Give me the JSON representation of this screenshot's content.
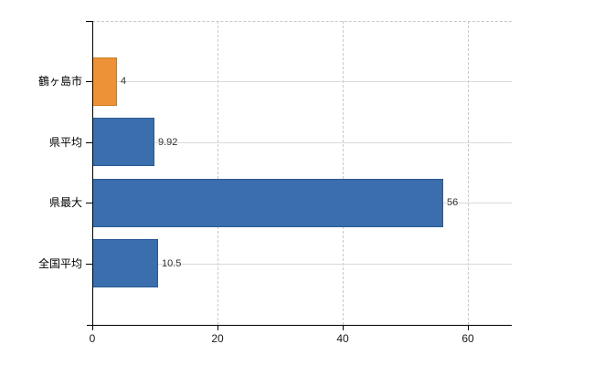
{
  "chart": {
    "background_color": "#ffffff",
    "axis_color": "#000000",
    "solid_gridline_color": "#d9d9d9",
    "dashed_gridline_color": "#c9c9c9",
    "value_label_color": "#333333",
    "tick_label_color": "#1a1a1a",
    "category_label_color": "#000000"
  },
  "chart_data": {
    "type": "bar",
    "orientation": "horizontal",
    "title": "",
    "xlabel": "",
    "ylabel": "",
    "categories": [
      "鶴ヶ島市",
      "県平均",
      "県最大",
      "全国平均"
    ],
    "values": [
      4,
      9.92,
      56,
      10.5
    ],
    "value_labels": [
      "4",
      "9.92",
      "56",
      "10.5"
    ],
    "bar_colors": [
      "#ee9237",
      "#3a6eac",
      "#3a6eac",
      "#3a6eac"
    ],
    "bar_border_colors": [
      "#c97a20",
      "#2a5a94",
      "#2a5a94",
      "#2a5a94"
    ],
    "highlight_color": "#ee9237",
    "series_color": "#3a6eac",
    "x_ticks": [
      0,
      20,
      40,
      60
    ],
    "x_tick_labels": [
      "0",
      "20",
      "40",
      "60"
    ],
    "xlim": [
      0,
      67
    ],
    "legend": "none",
    "grid": {
      "vertical_gridlines": "dashed",
      "horizontal_category_lines": "solid",
      "top_boundary": "dashed"
    }
  }
}
